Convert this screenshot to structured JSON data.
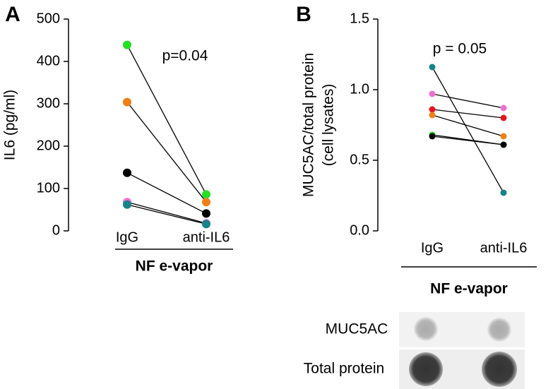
{
  "chart_data": [
    {
      "type": "paired",
      "panel_label": "A",
      "ylabel": "IL6 (pg/ml)",
      "annotation": "p=0.04",
      "group_label": "NF e-vapor",
      "categories": [
        "IgG",
        "anti-IL6"
      ],
      "ylim": [
        0,
        500
      ],
      "yticks": [
        0,
        100,
        200,
        300,
        400,
        500
      ],
      "series": [
        {
          "color": "#22e122",
          "values": [
            439,
            86
          ]
        },
        {
          "color": "#f07f16",
          "values": [
            304,
            68
          ]
        },
        {
          "color": "#000000",
          "values": [
            137,
            41
          ]
        },
        {
          "color": "#ee6fd0",
          "values": [
            68,
            18
          ]
        },
        {
          "color": "#14838a",
          "values": [
            62,
            16
          ]
        }
      ]
    },
    {
      "type": "paired",
      "panel_label": "B",
      "ylabel": [
        "MUC5AC/total protein",
        "(cell lysates)"
      ],
      "annotation": "p = 0.05",
      "group_label": "NF e-vapor",
      "categories": [
        "IgG",
        "anti-IL6"
      ],
      "ylim": [
        0,
        1.5
      ],
      "yticks": [
        {
          "value": 0,
          "label": "0.0"
        },
        0.5,
        {
          "value": 1,
          "label": "1.0"
        },
        1.5
      ],
      "series": [
        {
          "color": "#14838a",
          "values": [
            1.16,
            0.27
          ]
        },
        {
          "color": "#ee6fd0",
          "values": [
            0.97,
            0.87
          ]
        },
        {
          "color": "#e8141c",
          "values": [
            0.86,
            0.8
          ]
        },
        {
          "color": "#f07f16",
          "values": [
            0.82,
            0.67
          ]
        },
        {
          "color": "#22e122",
          "values": [
            0.68,
            0.61
          ]
        },
        {
          "color": "#000000",
          "values": [
            0.67,
            0.61
          ]
        }
      ]
    }
  ],
  "blot": {
    "rows": [
      "MUC5AC",
      "Total protein"
    ]
  }
}
